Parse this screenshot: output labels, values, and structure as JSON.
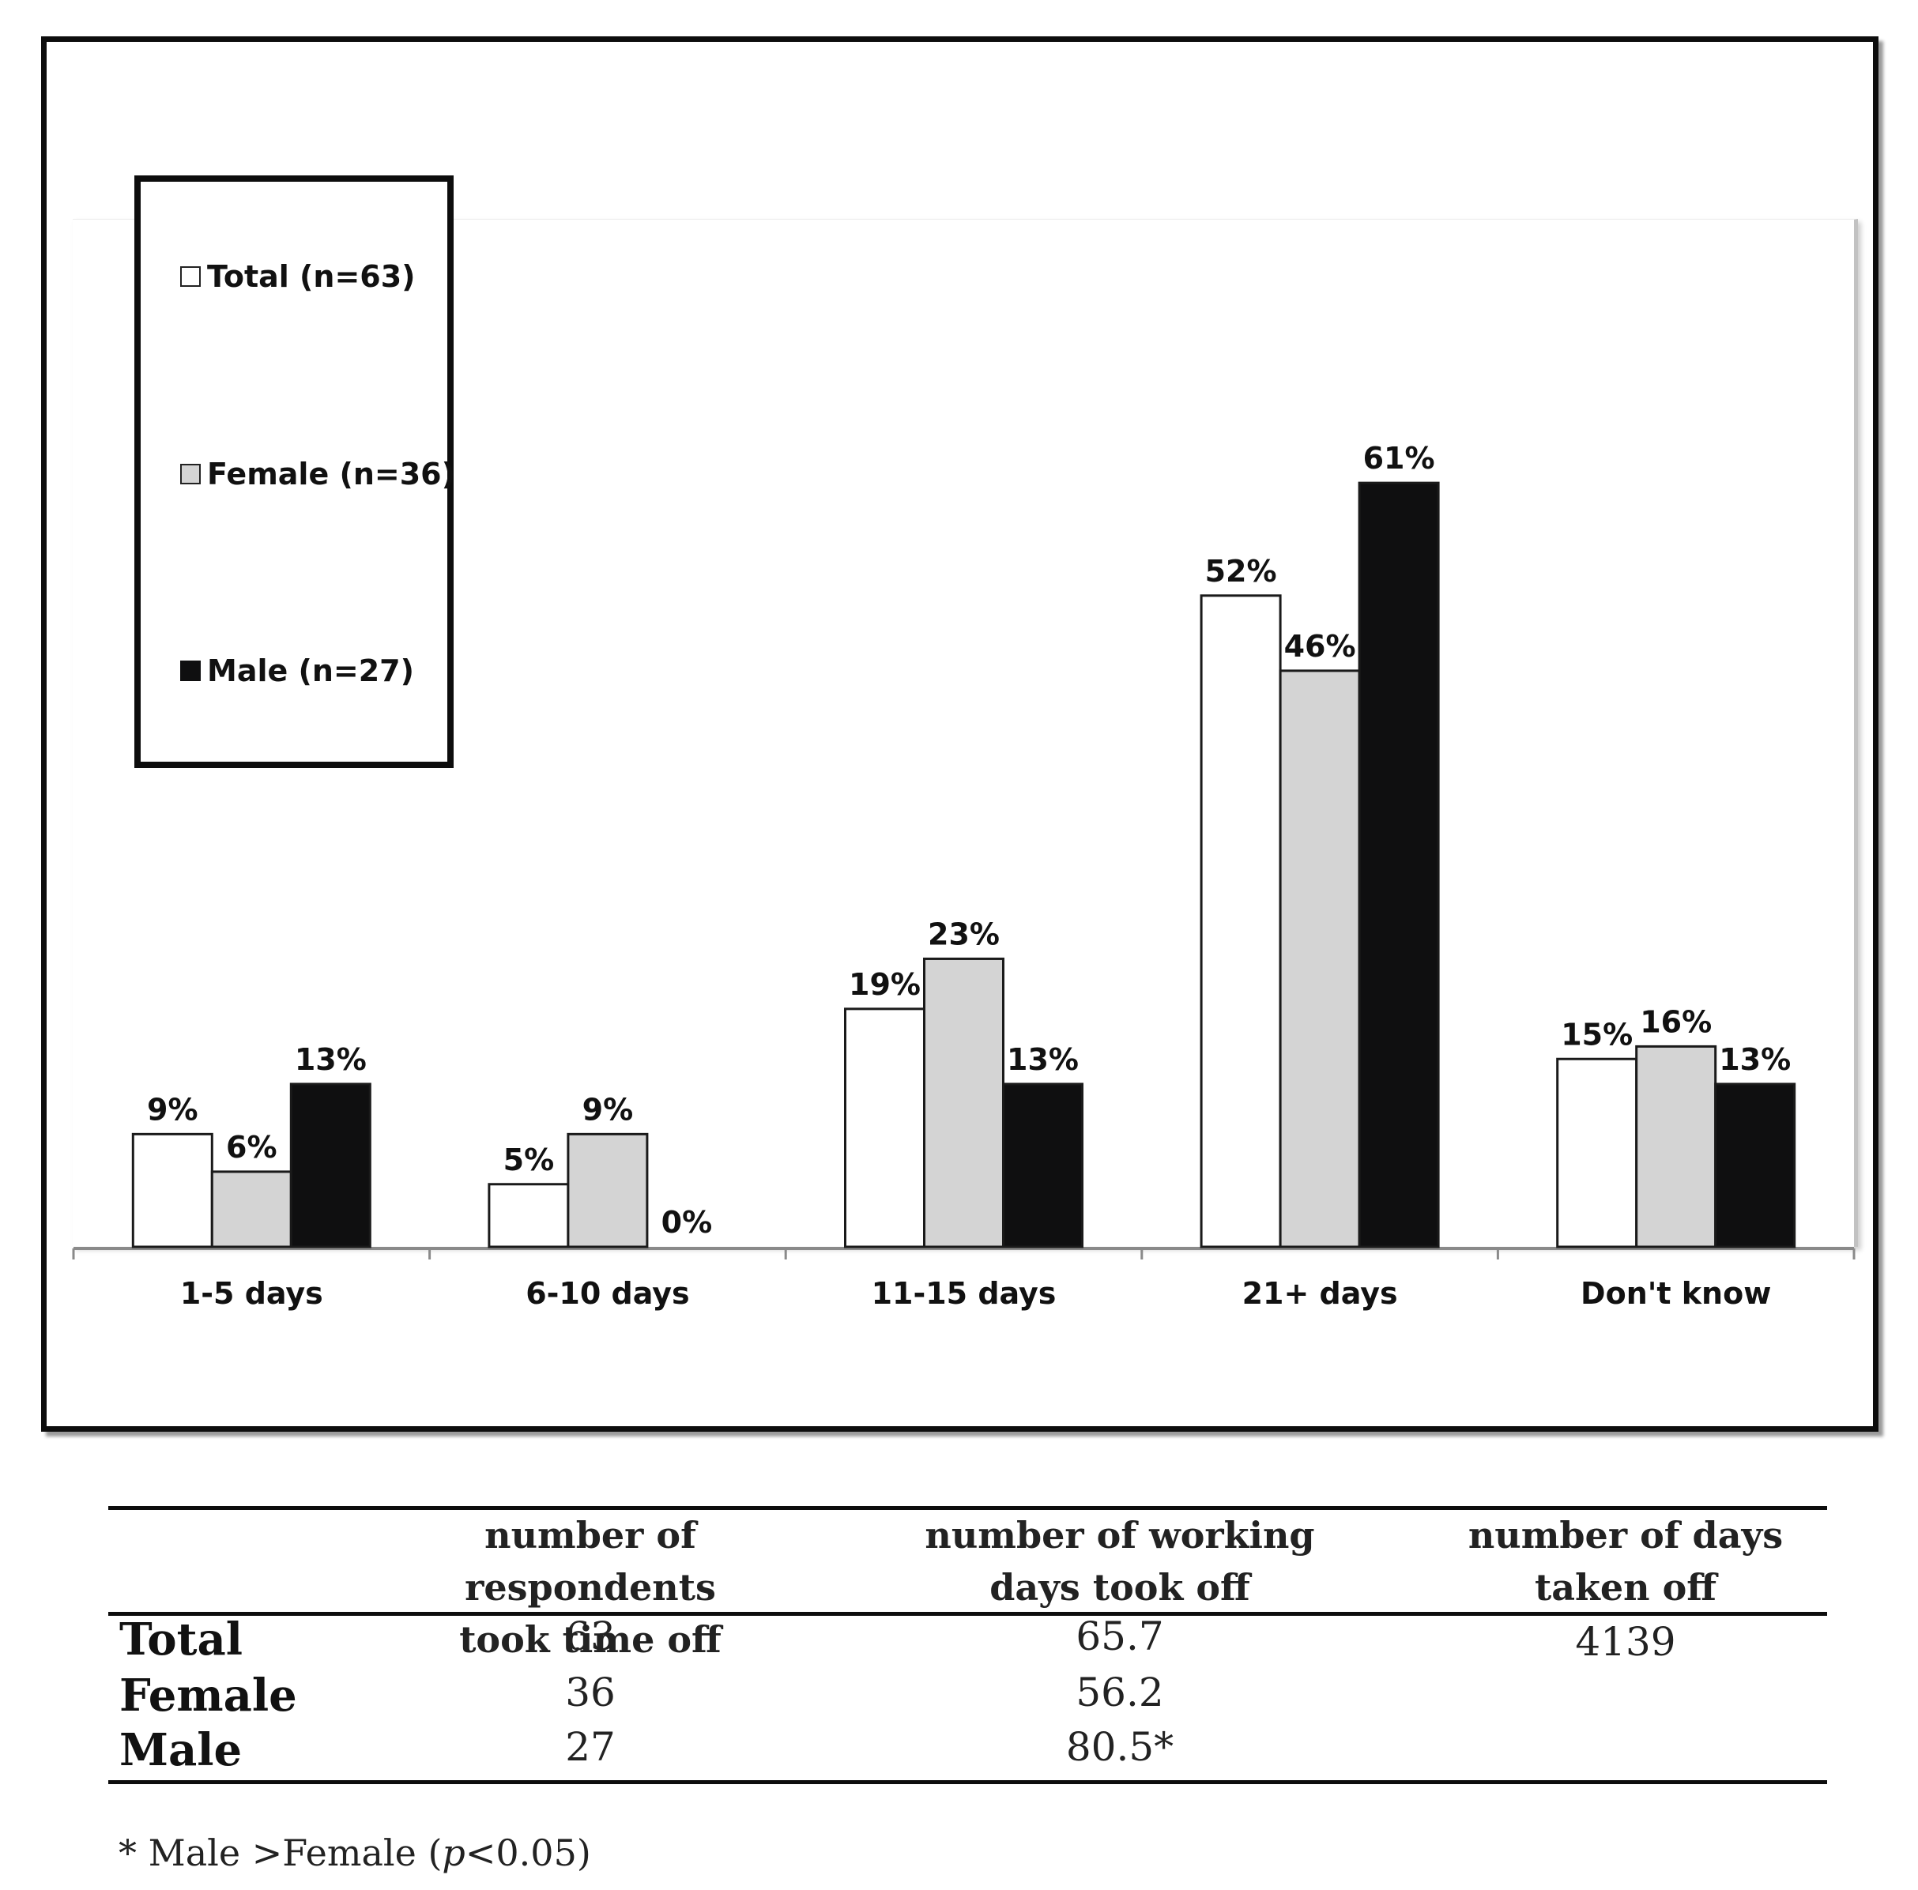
{
  "chart_data": {
    "type": "bar",
    "categories": [
      "1-5 days",
      "6-10 days",
      "11-15 days",
      "21+ days",
      "Don't know"
    ],
    "series": [
      {
        "name": "Total (n=63)",
        "values": [
          9,
          5,
          19,
          52,
          15
        ],
        "labels": [
          "9%",
          "5%",
          "19%",
          "52%",
          "15%"
        ],
        "color": "#ffffff"
      },
      {
        "name": "Female (n=36)",
        "values": [
          6,
          9,
          23,
          46,
          16
        ],
        "labels": [
          "6%",
          "9%",
          "23%",
          "46%",
          "16%"
        ],
        "color": "#d4d4d4"
      },
      {
        "name": "Male (n=27)",
        "values": [
          13,
          0,
          13,
          61,
          13
        ],
        "labels": [
          "13%",
          "0%",
          "13%",
          "61%",
          "13%"
        ],
        "color": "#0f0f10"
      }
    ],
    "ylim": [
      0,
      70
    ],
    "grid": false,
    "legend_position": "top-left"
  },
  "legend": {
    "total": "Total (n=63)",
    "female": "Female (n=36)",
    "male": "Male (n=27)"
  },
  "table": {
    "headers": [
      [
        "number of respondents",
        "took time off"
      ],
      [
        "number of  working",
        "days took off"
      ],
      [
        "number of days",
        "taken off"
      ]
    ],
    "rows": [
      {
        "label": "Total",
        "values": [
          "63",
          "65.7",
          "4139"
        ]
      },
      {
        "label": "Female",
        "values": [
          "36",
          "56.2",
          ""
        ]
      },
      {
        "label": "Male",
        "values": [
          "27",
          "80.5*",
          ""
        ]
      }
    ]
  },
  "footnote": {
    "prefix": "* Male >Female (",
    "p": "p",
    "suffix": "<0.05)"
  }
}
